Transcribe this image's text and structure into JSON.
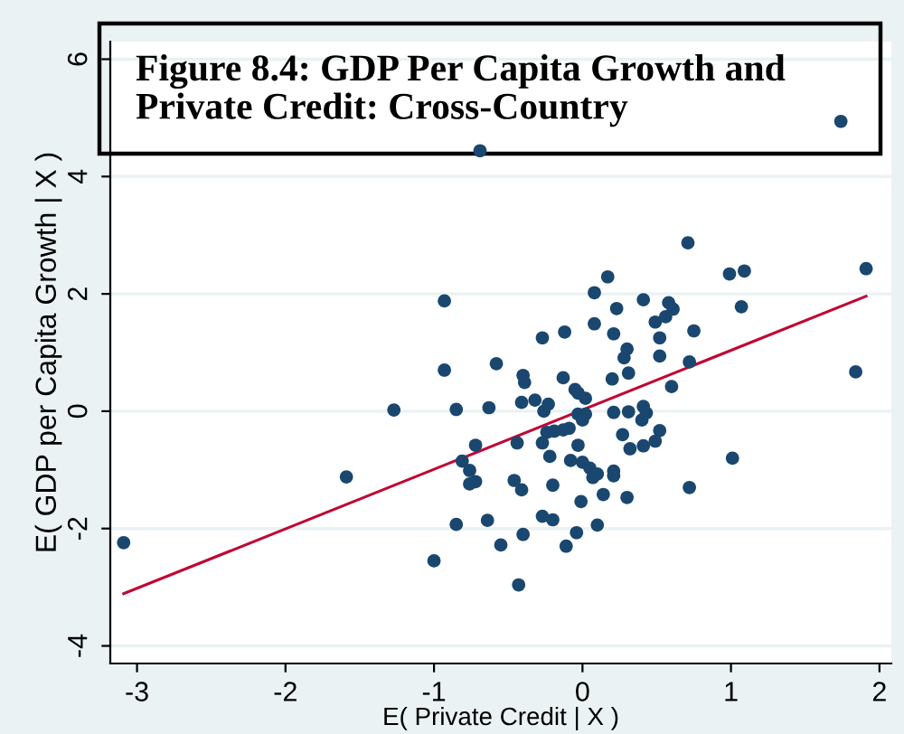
{
  "chart_data": {
    "type": "scatter",
    "title": "Figure 8.4: GDP Per Capita Growth and\nPrivate Credit: Cross-Country",
    "xlabel": "E( Private Credit | X )",
    "ylabel": "E( GDP per Capita Growth | X )",
    "xlim": [
      -3.18,
      2.08
    ],
    "ylim": [
      -4.3,
      6.3
    ],
    "xticks": [
      -3,
      -2,
      -1,
      0,
      1,
      2
    ],
    "yticks": [
      -4,
      -2,
      0,
      2,
      4,
      6
    ],
    "grid": "y",
    "series": [
      {
        "marker": "circle",
        "color": "#1a476f",
        "x": [
          -3.09,
          -1.59,
          -1.27,
          -1.0,
          -0.93,
          -0.93,
          -0.85,
          -0.85,
          -0.72,
          -0.81,
          -0.76,
          -0.76,
          -0.72,
          -0.69,
          -0.64,
          -0.63,
          -0.58,
          -0.55,
          -0.46,
          -0.44,
          -0.43,
          -0.41,
          -0.4,
          -0.4,
          -0.39,
          -0.41,
          -0.32,
          -0.27,
          -0.27,
          -0.27,
          -0.26,
          -0.23,
          -0.22,
          -0.2,
          -0.2,
          -0.24,
          -0.19,
          -0.12,
          -0.13,
          -0.11,
          -0.13,
          -0.09,
          -0.08,
          -0.05,
          -0.03,
          -0.03,
          -0.04,
          -0.01,
          -0.03,
          0.0,
          0.0,
          0.02,
          0.02,
          0.05,
          0.07,
          0.1,
          0.08,
          0.08,
          0.1,
          0.14,
          0.17,
          0.21,
          0.2,
          0.21,
          0.21,
          0.21,
          0.23,
          0.27,
          0.28,
          0.3,
          0.3,
          0.31,
          0.31,
          0.32,
          0.41,
          0.41,
          0.4,
          0.43,
          0.41,
          0.49,
          0.52,
          0.52,
          0.52,
          0.49,
          0.56,
          0.58,
          0.61,
          0.6,
          0.71,
          0.72,
          0.72,
          0.75,
          0.99,
          1.01,
          1.07,
          1.09,
          1.74,
          1.84,
          1.91
        ],
        "values": [
          -2.24,
          -1.12,
          0.02,
          -2.55,
          1.88,
          0.7,
          0.03,
          -1.93,
          -0.58,
          -0.85,
          -1.01,
          -1.24,
          -1.2,
          4.44,
          -1.86,
          0.06,
          0.81,
          -2.28,
          -1.18,
          -0.54,
          -2.96,
          -1.34,
          -2.1,
          0.61,
          0.49,
          0.15,
          0.19,
          1.25,
          -1.79,
          -0.54,
          0.0,
          0.12,
          -0.77,
          -1.85,
          -1.26,
          -0.36,
          -0.34,
          1.35,
          0.57,
          -2.3,
          -0.32,
          -0.29,
          -0.84,
          0.37,
          0.31,
          -0.58,
          -2.07,
          -1.54,
          -0.05,
          -0.15,
          -0.87,
          0.22,
          -0.05,
          -0.97,
          -1.13,
          -1.07,
          1.49,
          2.02,
          -1.94,
          -1.42,
          2.29,
          1.32,
          0.55,
          -0.02,
          -1.02,
          -1.1,
          1.75,
          -0.4,
          0.91,
          1.06,
          -1.47,
          0.65,
          -0.01,
          -0.64,
          1.9,
          0.08,
          -0.15,
          -0.03,
          -0.59,
          1.52,
          0.94,
          1.25,
          -0.33,
          -0.51,
          1.61,
          1.85,
          1.74,
          0.42,
          2.87,
          -1.3,
          0.84,
          1.37,
          2.34,
          -0.8,
          1.78,
          2.39,
          4.94,
          0.67,
          2.43
        ]
      },
      {
        "type": "line",
        "color": "#c10534",
        "x": [
          -3.09,
          1.91
        ],
        "values": [
          -3.11,
          1.96
        ]
      }
    ]
  }
}
